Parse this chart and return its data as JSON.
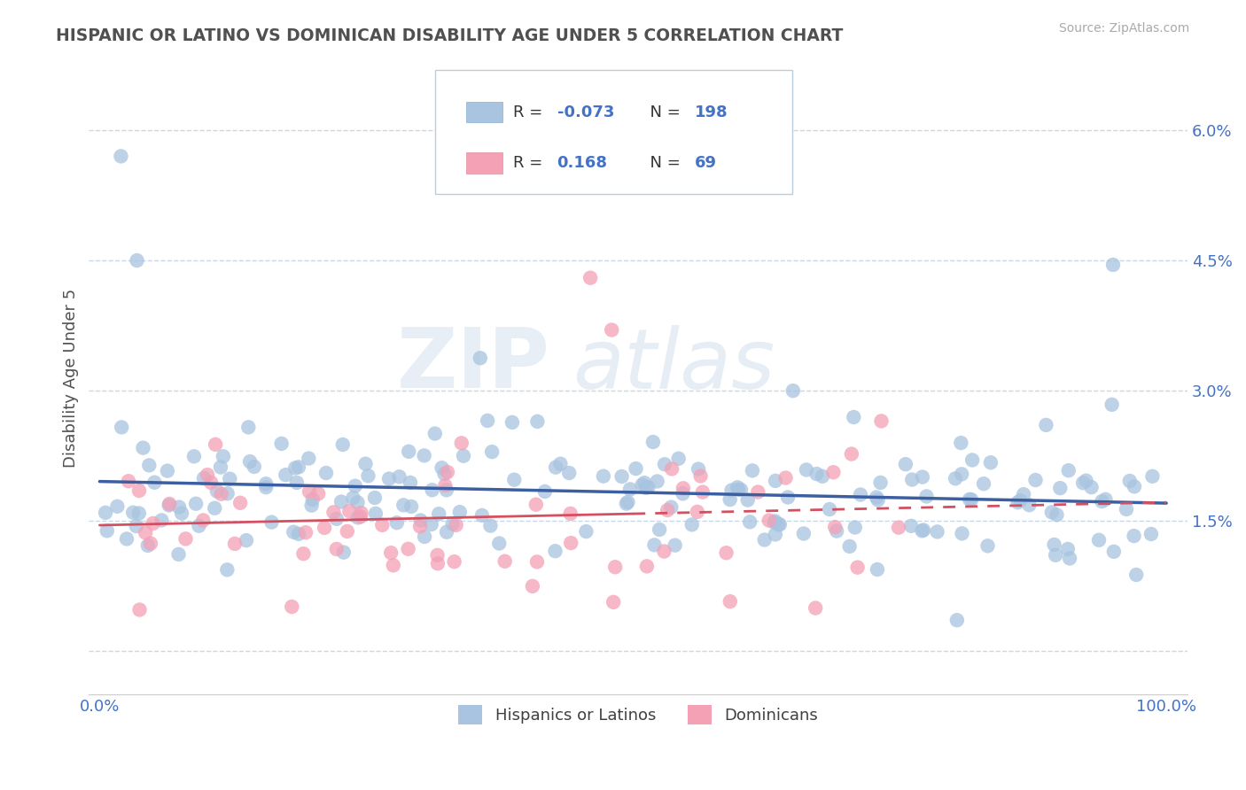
{
  "title": "HISPANIC OR LATINO VS DOMINICAN DISABILITY AGE UNDER 5 CORRELATION CHART",
  "source_text": "Source: ZipAtlas.com",
  "ylabel": "Disability Age Under 5",
  "xlim": [
    0,
    100
  ],
  "ylim": [
    -0.5,
    6.8
  ],
  "yticks": [
    0.0,
    1.5,
    3.0,
    4.5,
    6.0
  ],
  "xticks": [
    0,
    25,
    50,
    75,
    100
  ],
  "xtick_labels": [
    "0.0%",
    "",
    "",
    "",
    "100.0%"
  ],
  "ytick_labels": [
    "",
    "1.5%",
    "3.0%",
    "4.5%",
    "6.0%"
  ],
  "blue_color": "#a8c4e0",
  "pink_color": "#f4a0b5",
  "blue_line_color": "#3b5fa0",
  "pink_line_color": "#d45060",
  "blue_r": -0.073,
  "pink_r": 0.168,
  "blue_n": 198,
  "pink_n": 69,
  "watermark_zip": "ZIP",
  "watermark_atlas": "atlas",
  "background_color": "#ffffff",
  "grid_color": "#c8d8e8",
  "title_color": "#505050",
  "tick_label_color": "#4472c4",
  "legend_r1_val": "-0.073",
  "legend_n1_val": "198",
  "legend_r2_val": "0.168",
  "legend_n2_val": "69"
}
